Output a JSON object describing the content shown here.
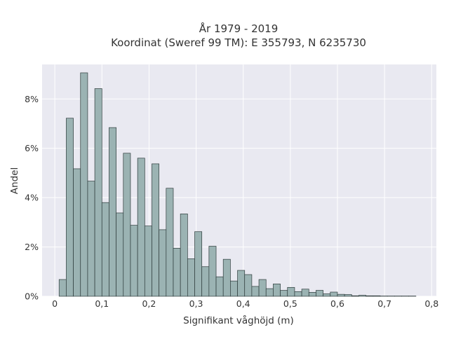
{
  "chart_data": {
    "type": "bar",
    "title_line1": "År 1979 - 2019",
    "title_line2": "Koordinat (Sweref 99 TM): E 355793, N 6235730",
    "xlabel": "Signifikant våghöjd (m)",
    "ylabel": "Andel",
    "xlim": [
      -0.027,
      0.81
    ],
    "ylim": [
      0,
      9.4
    ],
    "x_ticks": [
      {
        "value": 0.0,
        "label": "0"
      },
      {
        "value": 0.1,
        "label": "0,1"
      },
      {
        "value": 0.2,
        "label": "0,2"
      },
      {
        "value": 0.3,
        "label": "0,3"
      },
      {
        "value": 0.4,
        "label": "0,4"
      },
      {
        "value": 0.5,
        "label": "0,5"
      },
      {
        "value": 0.6,
        "label": "0,6"
      },
      {
        "value": 0.7,
        "label": "0,7"
      },
      {
        "value": 0.8,
        "label": "0,8"
      }
    ],
    "y_ticks": [
      {
        "value": 0,
        "label": "0%"
      },
      {
        "value": 2,
        "label": "2%"
      },
      {
        "value": 4,
        "label": "4%"
      },
      {
        "value": 6,
        "label": "6%"
      },
      {
        "value": 8,
        "label": "8%"
      }
    ],
    "grid": true,
    "bin_start": 0.0091,
    "bin_width": 0.01515,
    "values": [
      0.68,
      7.22,
      5.17,
      9.06,
      4.67,
      8.42,
      3.8,
      6.84,
      3.38,
      5.8,
      2.88,
      5.6,
      2.85,
      5.37,
      2.7,
      4.38,
      1.95,
      3.34,
      1.52,
      2.62,
      1.2,
      2.03,
      0.79,
      1.5,
      0.62,
      1.05,
      0.88,
      0.4,
      0.68,
      0.31,
      0.5,
      0.24,
      0.36,
      0.19,
      0.29,
      0.16,
      0.24,
      0.1,
      0.17,
      0.08,
      0.07,
      0.02,
      0.04,
      0.02,
      0.02,
      0.01,
      0.01,
      0.01,
      0.01,
      0.01
    ],
    "colors": {
      "bar_fill": "#9bb3b3",
      "bar_stroke": "#2e3b3b",
      "plot_bg": "#e9e9f1",
      "grid": "#ffffff",
      "text": "#333333"
    }
  }
}
